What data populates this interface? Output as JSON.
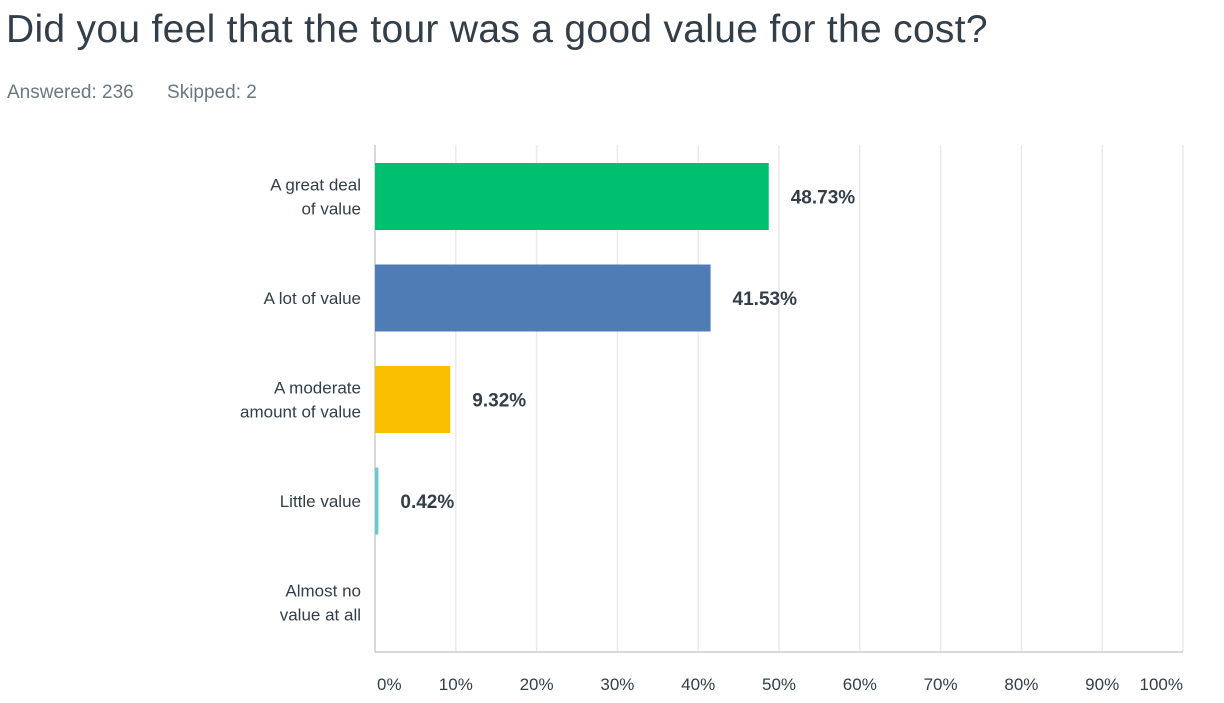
{
  "question": "Did you feel that the tour was a good value for the cost?",
  "stats": {
    "answered": "Answered: 236",
    "skipped": "Skipped: 2"
  },
  "chart_data": {
    "type": "bar",
    "orientation": "horizontal",
    "categories": [
      [
        "A great deal",
        "of value"
      ],
      [
        "A lot of value"
      ],
      [
        "A moderate",
        "amount of value"
      ],
      [
        "Little value"
      ],
      [
        "Almost no",
        "value at all"
      ]
    ],
    "values": [
      48.73,
      41.53,
      9.32,
      0.42,
      0
    ],
    "value_labels": [
      "48.73%",
      "41.53%",
      "9.32%",
      "0.42%",
      ""
    ],
    "colors": [
      "#00bf6f",
      "#507cb6",
      "#f9be00",
      "#6bc8cd",
      "#ff8b4f"
    ],
    "xlim": [
      0,
      100
    ],
    "xticks": [
      "0%",
      "10%",
      "20%",
      "30%",
      "40%",
      "50%",
      "60%",
      "70%",
      "80%",
      "90%",
      "100%"
    ],
    "grid": true,
    "gridline_color": "#e9eaeb",
    "axis_color": "#c9ced1"
  }
}
